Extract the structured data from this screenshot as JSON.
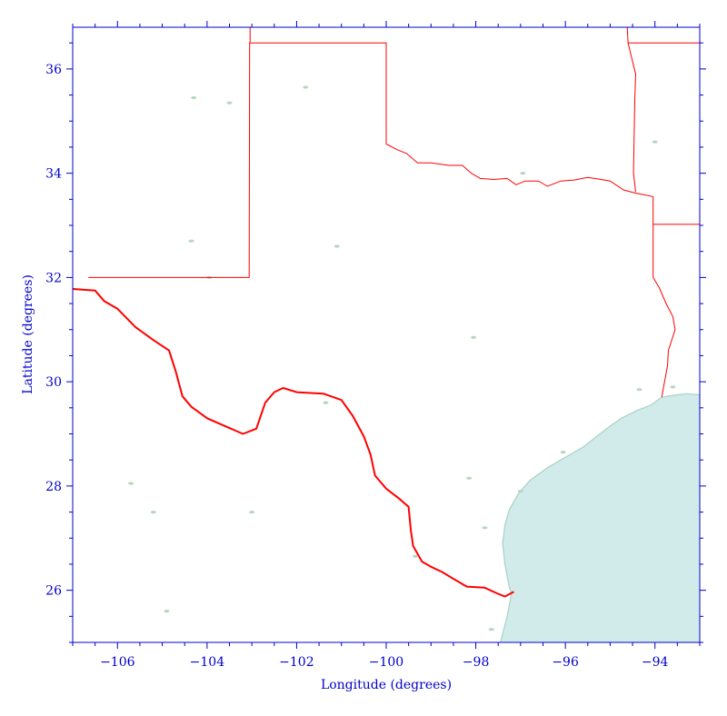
{
  "map": {
    "x_axis_label": "Longitude (degrees)",
    "y_axis_label": "Latitude (degrees)",
    "x_range": [
      -107,
      -93
    ],
    "y_range": [
      25,
      36.8
    ],
    "x_ticks": [
      -106,
      -104,
      -102,
      -100,
      -98,
      -96,
      -94
    ],
    "y_ticks": [
      26,
      28,
      30,
      32,
      34,
      36
    ],
    "colors": {
      "axis": "#0000cc",
      "border": "#ff0000",
      "gulf_fill": "#d1ebeb",
      "coast_line": "#a8d2c4",
      "lakes": "#b7d7bd"
    },
    "international_border": [
      [
        -107,
        31.78
      ],
      [
        -106.5,
        31.75
      ],
      [
        -106.3,
        31.55
      ],
      [
        -106.0,
        31.4
      ],
      [
        -105.6,
        31.05
      ],
      [
        -105.2,
        30.8
      ],
      [
        -104.85,
        30.6
      ],
      [
        -104.7,
        30.2
      ],
      [
        -104.55,
        29.72
      ],
      [
        -104.35,
        29.52
      ],
      [
        -104.0,
        29.3
      ],
      [
        -103.6,
        29.15
      ],
      [
        -103.2,
        29.0
      ],
      [
        -102.9,
        29.1
      ],
      [
        -102.7,
        29.6
      ],
      [
        -102.5,
        29.8
      ],
      [
        -102.3,
        29.88
      ],
      [
        -102.0,
        29.8
      ],
      [
        -101.6,
        29.78
      ],
      [
        -101.4,
        29.77
      ],
      [
        -101.0,
        29.65
      ],
      [
        -100.75,
        29.35
      ],
      [
        -100.5,
        28.95
      ],
      [
        -100.35,
        28.6
      ],
      [
        -100.25,
        28.2
      ],
      [
        -100.0,
        27.95
      ],
      [
        -99.7,
        27.75
      ],
      [
        -99.5,
        27.6
      ],
      [
        -99.45,
        27.15
      ],
      [
        -99.4,
        26.85
      ],
      [
        -99.2,
        26.55
      ],
      [
        -99.0,
        26.45
      ],
      [
        -98.75,
        26.35
      ],
      [
        -98.5,
        26.22
      ],
      [
        -98.2,
        26.07
      ],
      [
        -97.8,
        26.05
      ],
      [
        -97.55,
        25.95
      ],
      [
        -97.35,
        25.88
      ],
      [
        -97.15,
        25.97
      ]
    ],
    "state_borders": [
      [
        [
          -106.65,
          32.0
        ],
        [
          -103.06,
          32.0
        ],
        [
          -103.05,
          36.5
        ],
        [
          -100.0,
          36.5
        ],
        [
          -100.0,
          34.56
        ]
      ],
      [
        [
          -103.04,
          36.5
        ],
        [
          -103.04,
          36.8
        ]
      ],
      [
        [
          -100.0,
          34.56
        ],
        [
          -99.75,
          34.45
        ],
        [
          -99.55,
          34.38
        ],
        [
          -99.3,
          34.2
        ],
        [
          -99.0,
          34.2
        ],
        [
          -98.6,
          34.15
        ],
        [
          -98.3,
          34.15
        ],
        [
          -98.1,
          34.0
        ],
        [
          -97.9,
          33.9
        ],
        [
          -97.6,
          33.88
        ],
        [
          -97.3,
          33.9
        ],
        [
          -97.1,
          33.78
        ],
        [
          -96.9,
          33.85
        ],
        [
          -96.6,
          33.85
        ],
        [
          -96.4,
          33.75
        ],
        [
          -96.1,
          33.85
        ],
        [
          -95.8,
          33.87
        ],
        [
          -95.5,
          33.92
        ],
        [
          -95.2,
          33.88
        ],
        [
          -95.0,
          33.85
        ],
        [
          -94.7,
          33.68
        ],
        [
          -94.45,
          33.62
        ],
        [
          -94.2,
          33.58
        ],
        [
          -94.04,
          33.55
        ]
      ],
      [
        [
          -94.04,
          33.55
        ],
        [
          -94.04,
          33.02
        ],
        [
          -93.0,
          33.02
        ]
      ],
      [
        [
          -94.04,
          33.02
        ],
        [
          -94.04,
          32.0
        ],
        [
          -93.9,
          31.8
        ],
        [
          -93.75,
          31.5
        ],
        [
          -93.6,
          31.25
        ],
        [
          -93.55,
          31.0
        ],
        [
          -93.7,
          30.6
        ],
        [
          -93.72,
          30.3
        ],
        [
          -93.85,
          29.7
        ]
      ],
      [
        [
          -94.43,
          33.64
        ],
        [
          -94.48,
          34.0
        ],
        [
          -94.45,
          35.4
        ],
        [
          -94.43,
          35.9
        ],
        [
          -94.6,
          36.5
        ],
        [
          -94.62,
          36.8
        ]
      ],
      [
        [
          -94.6,
          36.5
        ],
        [
          -93.0,
          36.5
        ]
      ]
    ],
    "gulf_coast": [
      [
        -93.0,
        29.75
      ],
      [
        -93.3,
        29.77
      ],
      [
        -93.6,
        29.74
      ],
      [
        -93.85,
        29.7
      ],
      [
        -94.1,
        29.55
      ],
      [
        -94.4,
        29.45
      ],
      [
        -94.75,
        29.3
      ],
      [
        -95.0,
        29.15
      ],
      [
        -95.3,
        28.95
      ],
      [
        -95.6,
        28.75
      ],
      [
        -96.0,
        28.55
      ],
      [
        -96.4,
        28.35
      ],
      [
        -96.8,
        28.1
      ],
      [
        -97.05,
        27.85
      ],
      [
        -97.25,
        27.55
      ],
      [
        -97.35,
        27.25
      ],
      [
        -97.4,
        26.9
      ],
      [
        -97.35,
        26.5
      ],
      [
        -97.25,
        26.05
      ],
      [
        -97.2,
        25.95
      ],
      [
        -97.3,
        25.5
      ],
      [
        -97.45,
        25.0
      ]
    ],
    "lakes": [
      [
        -104.3,
        35.45
      ],
      [
        -103.5,
        35.35
      ],
      [
        -101.8,
        35.65
      ],
      [
        -94.0,
        34.6
      ],
      [
        -104.35,
        32.7
      ],
      [
        -103.95,
        32.0
      ],
      [
        -101.1,
        32.6
      ],
      [
        -98.05,
        30.85
      ],
      [
        -96.95,
        34.0
      ],
      [
        -101.35,
        29.6
      ],
      [
        -98.15,
        28.15
      ],
      [
        -99.35,
        26.65
      ],
      [
        -105.7,
        28.05
      ],
      [
        -105.2,
        27.5
      ],
      [
        -103.0,
        27.5
      ],
      [
        -104.9,
        25.6
      ],
      [
        -96.05,
        28.65
      ],
      [
        -97.65,
        25.25
      ],
      [
        -94.35,
        29.85
      ],
      [
        -93.6,
        29.9
      ],
      [
        -97.0,
        27.9
      ],
      [
        -97.8,
        27.2
      ]
    ]
  }
}
